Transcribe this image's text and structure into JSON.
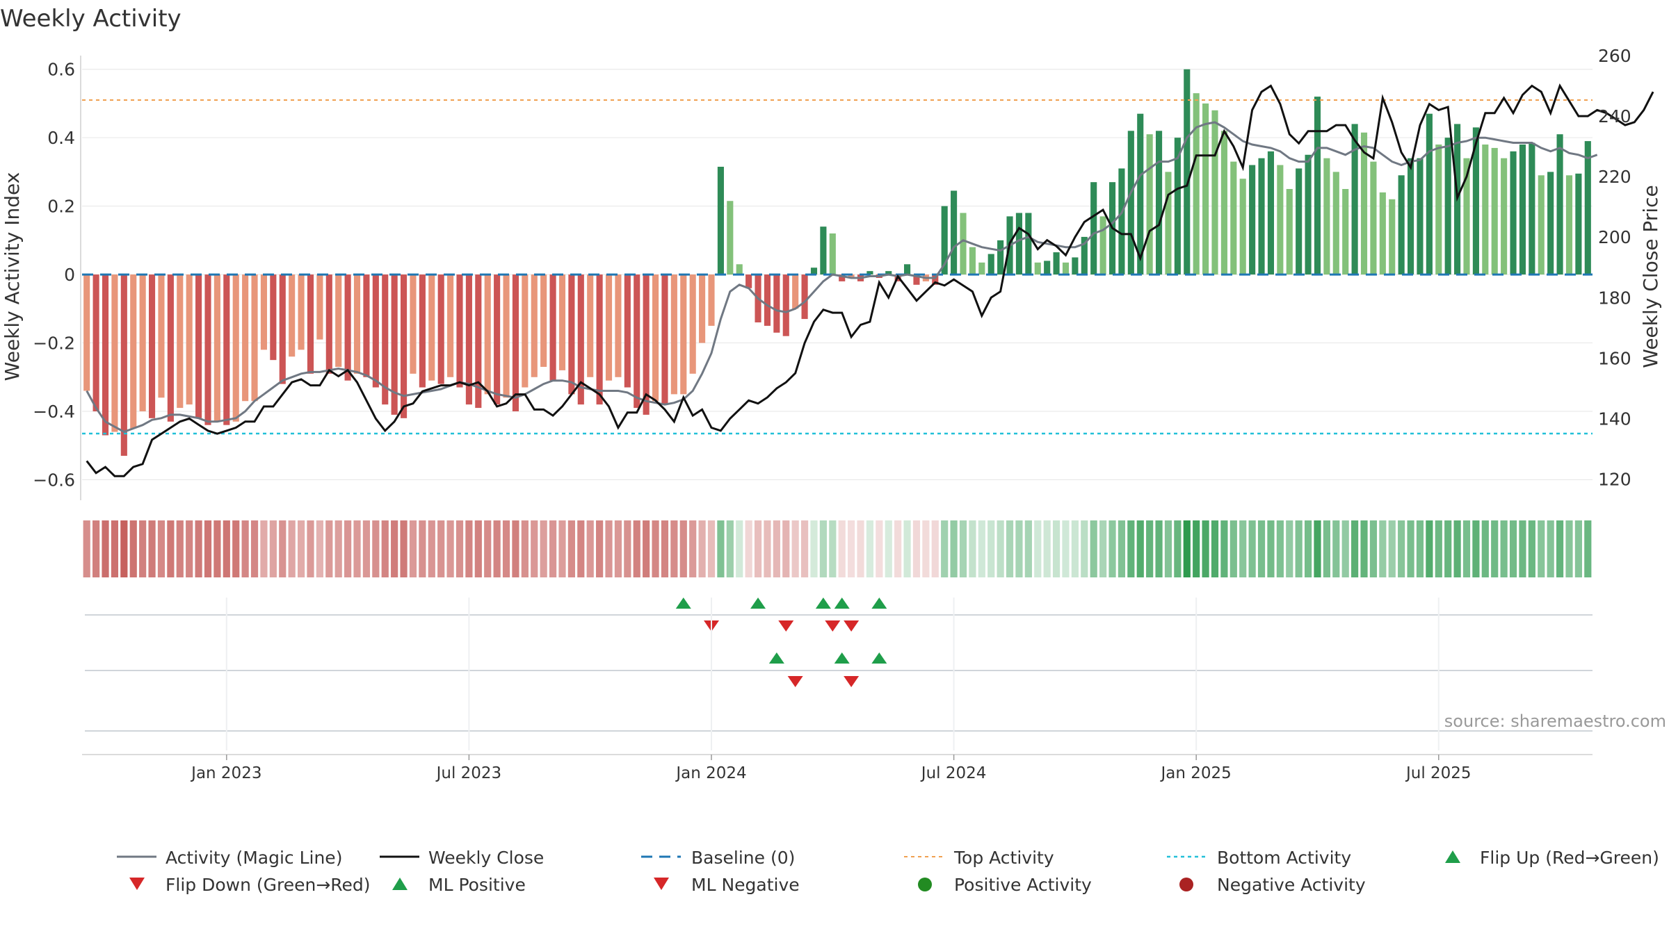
{
  "chart_data": {
    "type": "bar",
    "title": "Weekly Activity",
    "ylabel": "Weekly Activity Index",
    "y2label": "Weekly Close Price",
    "ylim": [
      -0.66,
      0.64
    ],
    "y2lim": [
      113,
      260
    ],
    "yticks": [
      -0.6,
      -0.4,
      -0.2,
      0,
      0.2,
      0.4,
      0.6
    ],
    "ytick_labels": [
      "−0.6",
      "−0.4",
      "−0.2",
      "0",
      "0.2",
      "0.4",
      "0.6"
    ],
    "y2ticks": [
      120,
      140,
      160,
      180,
      200,
      220,
      240,
      260
    ],
    "y2tick_labels": [
      "120",
      "140",
      "160",
      "180",
      "200",
      "220",
      "240",
      "260"
    ],
    "xticks": [
      {
        "label": "Jan 2023",
        "week": 15
      },
      {
        "label": "Jul 2023",
        "week": 41
      },
      {
        "label": "Jan 2024",
        "week": 67
      },
      {
        "label": "Jul 2024",
        "week": 93
      },
      {
        "label": "Jan 2025",
        "week": 119
      },
      {
        "label": "Jul 2025",
        "week": 145
      }
    ],
    "top_activity": 0.51,
    "bottom_activity": -0.465,
    "activity": [
      -0.34,
      -0.4,
      -0.47,
      -0.46,
      -0.53,
      -0.45,
      -0.4,
      -0.42,
      -0.36,
      -0.43,
      -0.39,
      -0.38,
      -0.42,
      -0.44,
      -0.43,
      -0.44,
      -0.43,
      -0.37,
      -0.37,
      -0.22,
      -0.25,
      -0.32,
      -0.24,
      -0.22,
      -0.29,
      -0.19,
      -0.29,
      -0.27,
      -0.31,
      -0.29,
      -0.3,
      -0.33,
      -0.38,
      -0.41,
      -0.42,
      -0.29,
      -0.33,
      -0.31,
      -0.32,
      -0.3,
      -0.33,
      -0.38,
      -0.39,
      -0.35,
      -0.38,
      -0.36,
      -0.4,
      -0.33,
      -0.3,
      -0.27,
      -0.31,
      -0.28,
      -0.35,
      -0.38,
      -0.3,
      -0.38,
      -0.31,
      -0.3,
      -0.33,
      -0.39,
      -0.41,
      -0.37,
      -0.38,
      -0.35,
      -0.35,
      -0.29,
      -0.2,
      -0.15,
      0.315,
      0.215,
      0.03,
      -0.04,
      -0.14,
      -0.15,
      -0.17,
      -0.18,
      -0.1,
      -0.13,
      0.02,
      0.14,
      0.12,
      -0.02,
      -0.01,
      -0.02,
      0.01,
      -0.01,
      0.01,
      -0.02,
      0.03,
      -0.03,
      -0.02,
      -0.03,
      0.2,
      0.245,
      0.18,
      0.08,
      0.035,
      0.06,
      0.1,
      0.17,
      0.18,
      0.18,
      0.035,
      0.04,
      0.065,
      0.035,
      0.05,
      0.11,
      0.27,
      0.17,
      0.27,
      0.31,
      0.42,
      0.47,
      0.41,
      0.42,
      0.3,
      0.4,
      0.6,
      0.53,
      0.5,
      0.48,
      0.42,
      0.33,
      0.28,
      0.32,
      0.34,
      0.36,
      0.32,
      0.25,
      0.31,
      0.35,
      0.52,
      0.34,
      0.3,
      0.25,
      0.44,
      0.415,
      0.33,
      0.24,
      0.22,
      0.29,
      0.34,
      0.34,
      0.47,
      0.38,
      0.4,
      0.44,
      0.34,
      0.43,
      0.38,
      0.37,
      0.34,
      0.36,
      0.38,
      0.385,
      0.29,
      0.3,
      0.41,
      0.29,
      0.295,
      0.39
    ],
    "magic_line": [
      -0.34,
      -0.39,
      -0.43,
      -0.445,
      -0.46,
      -0.45,
      -0.44,
      -0.425,
      -0.42,
      -0.41,
      -0.41,
      -0.415,
      -0.42,
      -0.43,
      -0.43,
      -0.425,
      -0.42,
      -0.4,
      -0.37,
      -0.35,
      -0.33,
      -0.31,
      -0.3,
      -0.29,
      -0.285,
      -0.285,
      -0.28,
      -0.275,
      -0.28,
      -0.285,
      -0.295,
      -0.31,
      -0.33,
      -0.345,
      -0.355,
      -0.35,
      -0.345,
      -0.34,
      -0.335,
      -0.325,
      -0.315,
      -0.32,
      -0.33,
      -0.34,
      -0.35,
      -0.355,
      -0.36,
      -0.35,
      -0.335,
      -0.32,
      -0.31,
      -0.31,
      -0.315,
      -0.33,
      -0.335,
      -0.34,
      -0.34,
      -0.34,
      -0.345,
      -0.36,
      -0.37,
      -0.375,
      -0.38,
      -0.375,
      -0.365,
      -0.34,
      -0.29,
      -0.23,
      -0.13,
      -0.05,
      -0.03,
      -0.04,
      -0.07,
      -0.09,
      -0.105,
      -0.11,
      -0.1,
      -0.08,
      -0.05,
      -0.02,
      0.0,
      -0.005,
      -0.01,
      -0.01,
      -0.005,
      -0.005,
      0.0,
      -0.005,
      0.0,
      -0.005,
      -0.01,
      -0.01,
      0.03,
      0.08,
      0.1,
      0.09,
      0.08,
      0.075,
      0.07,
      0.085,
      0.1,
      0.11,
      0.095,
      0.09,
      0.085,
      0.08,
      0.08,
      0.09,
      0.12,
      0.13,
      0.15,
      0.18,
      0.24,
      0.29,
      0.31,
      0.33,
      0.33,
      0.34,
      0.4,
      0.43,
      0.44,
      0.445,
      0.43,
      0.41,
      0.39,
      0.38,
      0.375,
      0.37,
      0.36,
      0.34,
      0.33,
      0.33,
      0.37,
      0.37,
      0.36,
      0.35,
      0.365,
      0.375,
      0.37,
      0.35,
      0.33,
      0.32,
      0.33,
      0.335,
      0.36,
      0.37,
      0.375,
      0.385,
      0.39,
      0.4,
      0.4,
      0.395,
      0.39,
      0.385,
      0.385,
      0.385,
      0.37,
      0.36,
      0.37,
      0.355,
      0.35,
      0.34,
      0.35
    ],
    "weekly_close": [
      126,
      122,
      124,
      121,
      121,
      124,
      125,
      133,
      135,
      137,
      139,
      140,
      138,
      136,
      135,
      136,
      137,
      139,
      139,
      144,
      144,
      148,
      152,
      153,
      151,
      151,
      156,
      154,
      156,
      152,
      146,
      140,
      136,
      139,
      144,
      145,
      149,
      150,
      151,
      151,
      152,
      151,
      152,
      149,
      144,
      145,
      148,
      148,
      143,
      143,
      141,
      144,
      148,
      152,
      150,
      148,
      144,
      137,
      142,
      142,
      148,
      146,
      143,
      139,
      147,
      141,
      143,
      137,
      136,
      140,
      143,
      146,
      145,
      147,
      150,
      152,
      155,
      165,
      172,
      176,
      175,
      175,
      167,
      171,
      172,
      185,
      180,
      187,
      183,
      179,
      182,
      185,
      184,
      186,
      184,
      182,
      174,
      180,
      182,
      198,
      203,
      201,
      196,
      199,
      197,
      194,
      200,
      205,
      207,
      209,
      203,
      201,
      201,
      193,
      202,
      204,
      214,
      216,
      217,
      227,
      227,
      227,
      235,
      230,
      223,
      242,
      248,
      250,
      244,
      234,
      231,
      235,
      235,
      235,
      237,
      237,
      232,
      228,
      226,
      246,
      238,
      228,
      223,
      237,
      244,
      242,
      243,
      213,
      220,
      231,
      241,
      241,
      246,
      241,
      247,
      250,
      248,
      241,
      250,
      245,
      240,
      240,
      242,
      241,
      239,
      237,
      238,
      242,
      248
    ]
  },
  "legend": {
    "magic_line": "Activity (Magic Line)",
    "weekly_close": "Weekly Close",
    "baseline": "Baseline (0)",
    "top_activity": "Top Activity",
    "bottom_activity": "Bottom Activity",
    "flip_up": "Flip Up (Red→Green)",
    "flip_down": "Flip Down (Green→Red)",
    "ml_positive": "ML Positive",
    "ml_negative": "ML Negative",
    "positive_activity": "Positive Activity",
    "negative_activity": "Negative Activity"
  },
  "flip_up_weeks": [
    64,
    72,
    79,
    81,
    85
  ],
  "flip_down_weeks": [
    67,
    75,
    80,
    82
  ],
  "ml_positive_weeks": [
    74,
    81,
    85
  ],
  "ml_negative_weeks": [
    76,
    82
  ],
  "source": "source: sharemaestro.com",
  "colors": {
    "pos_dark": "#2e8b57",
    "pos_light": "#83c17a",
    "neg_dark": "#cc5555",
    "neg_light": "#e8967a",
    "magic_line": "#707883",
    "weekly_close": "#111111",
    "baseline": "#1f77b4",
    "top_line": "#f0a050",
    "bottom_line": "#22c0d8",
    "marker_up": "#1f9e4a",
    "marker_down": "#d62728",
    "dot_pos": "#228b22",
    "dot_neg": "#aa2222"
  }
}
